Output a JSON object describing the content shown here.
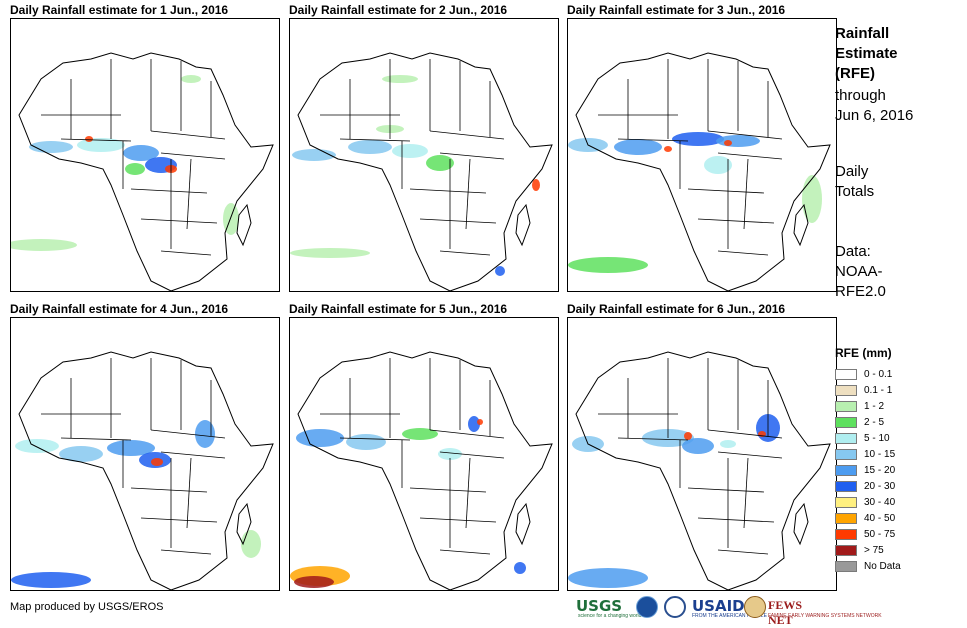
{
  "panels": [
    {
      "title": "Daily Rainfall estimate for 1 Jun., 2016"
    },
    {
      "title": "Daily Rainfall estimate for 2 Jun., 2016"
    },
    {
      "title": "Daily Rainfall estimate for 3 Jun., 2016"
    },
    {
      "title": "Daily Rainfall estimate for 4 Jun., 2016"
    },
    {
      "title": "Daily Rainfall estimate for 5 Jun., 2016"
    },
    {
      "title": "Daily Rainfall estimate for 6 Jun., 2016"
    }
  ],
  "sidebar": {
    "title_lines": [
      "Rainfall",
      "Estimate",
      "(RFE)"
    ],
    "through_lines": [
      "through",
      "Jun 6, 2016"
    ],
    "totals_lines": [
      "Daily",
      "Totals"
    ],
    "data_lines": [
      "Data:",
      "NOAA-",
      "RFE2.0"
    ]
  },
  "legend": {
    "title": "RFE (mm)",
    "items": [
      {
        "label": "0 - 0.1",
        "color": "#ffffff"
      },
      {
        "label": "0.1 - 1",
        "color": "#eedfc0"
      },
      {
        "label": "1 - 2",
        "color": "#b8f0b0"
      },
      {
        "label": "2 - 5",
        "color": "#5ee05e"
      },
      {
        "label": "5 - 10",
        "color": "#b0eef0"
      },
      {
        "label": "10 - 15",
        "color": "#86c8f0"
      },
      {
        "label": "15 - 20",
        "color": "#4d9cf0"
      },
      {
        "label": "20 - 30",
        "color": "#1f5ff0"
      },
      {
        "label": "30 - 40",
        "color": "#fff080"
      },
      {
        "label": "40 - 50",
        "color": "#ffa400"
      },
      {
        "label": "50 - 75",
        "color": "#ff3a00"
      },
      {
        "label": "> 75",
        "color": "#a11a1a"
      },
      {
        "label": "No Data",
        "color": "#999999"
      }
    ]
  },
  "credit": "Map produced by USGS/EROS",
  "logos": {
    "usgs": "USGS",
    "usgs_tagline": "science for a changing world",
    "usaid": "USAID",
    "usaid_tagline": "FROM THE AMERICAN PEOPLE",
    "fews": "FEWS NET",
    "fews_tagline": "FAMINE EARLY WARNING SYSTEMS NETWORK"
  }
}
